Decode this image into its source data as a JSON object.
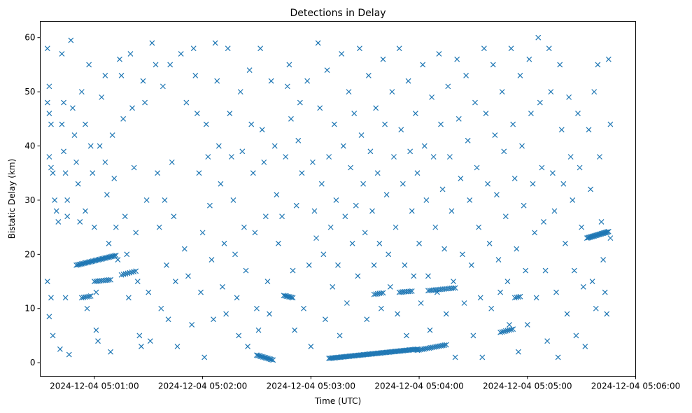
{
  "chart_data": {
    "type": "scatter",
    "title": "Detections in Delay",
    "xlabel": "Time (UTC)",
    "ylabel": "Bistatic Delay (km)",
    "x_unit": "seconds after 2024-12-04 05:00:00",
    "xlim": [
      30,
      360
    ],
    "ylim": [
      -2.5,
      63
    ],
    "xticks": [
      60,
      120,
      180,
      240,
      300,
      360
    ],
    "xtick_labels": [
      "2024-12-04 05:01:00",
      "2024-12-04 05:02:00",
      "2024-12-04 05:03:00",
      "2024-12-04 05:04:00",
      "2024-12-04 05:05:00",
      "2024-12-04 05:06:00"
    ],
    "yticks": [
      0,
      10,
      20,
      30,
      40,
      50,
      60
    ],
    "ytick_labels": [
      "0",
      "10",
      "20",
      "30",
      "40",
      "50",
      "60"
    ],
    "marker": "x",
    "color": "#1f77b4",
    "grid": false,
    "tracks": [
      {
        "start": [
          50,
          18.0
        ],
        "end": [
          72,
          19.8
        ],
        "n": 30
      },
      {
        "start": [
          60,
          15.0
        ],
        "end": [
          69,
          15.3
        ],
        "n": 10
      },
      {
        "start": [
          75,
          16.2
        ],
        "end": [
          83,
          16.9
        ],
        "n": 8
      },
      {
        "start": [
          53,
          12.0
        ],
        "end": [
          58,
          12.3
        ],
        "n": 6
      },
      {
        "start": [
          150,
          1.4
        ],
        "end": [
          159,
          0.5
        ],
        "n": 14
      },
      {
        "start": [
          165,
          12.4
        ],
        "end": [
          170,
          12.0
        ],
        "n": 8
      },
      {
        "start": [
          190,
          0.8
        ],
        "end": [
          239,
          2.5
        ],
        "n": 70
      },
      {
        "start": [
          239,
          2.3
        ],
        "end": [
          255,
          3.3
        ],
        "n": 18
      },
      {
        "start": [
          229,
          13.0
        ],
        "end": [
          236,
          13.2
        ],
        "n": 8
      },
      {
        "start": [
          215,
          12.6
        ],
        "end": [
          220,
          12.9
        ],
        "n": 6
      },
      {
        "start": [
          245,
          13.3
        ],
        "end": [
          260,
          13.8
        ],
        "n": 16
      },
      {
        "start": [
          285,
          5.6
        ],
        "end": [
          292,
          6.2
        ],
        "n": 8
      },
      {
        "start": [
          333,
          23.0
        ],
        "end": [
          345,
          24.2
        ],
        "n": 22
      },
      {
        "start": [
          293,
          12.0
        ],
        "end": [
          296,
          12.2
        ],
        "n": 4
      }
    ],
    "points": [
      [
        34,
        58
      ],
      [
        35,
        51
      ],
      [
        34,
        48
      ],
      [
        35,
        46
      ],
      [
        36,
        44
      ],
      [
        35,
        38
      ],
      [
        36,
        36
      ],
      [
        37,
        35
      ],
      [
        34,
        15
      ],
      [
        36,
        12
      ],
      [
        35,
        8.5
      ],
      [
        37,
        5
      ],
      [
        38,
        30
      ],
      [
        39,
        28
      ],
      [
        40,
        26
      ],
      [
        41,
        2.5
      ],
      [
        42,
        57
      ],
      [
        43,
        48
      ],
      [
        42,
        44
      ],
      [
        43,
        39
      ],
      [
        44,
        35
      ],
      [
        45,
        30
      ],
      [
        45,
        27
      ],
      [
        44,
        12
      ],
      [
        46,
        1.5
      ],
      [
        47,
        59.5
      ],
      [
        48,
        47
      ],
      [
        49,
        42
      ],
      [
        50,
        37
      ],
      [
        51,
        33
      ],
      [
        52,
        26
      ],
      [
        53,
        50
      ],
      [
        55,
        44
      ],
      [
        55,
        28
      ],
      [
        56,
        10
      ],
      [
        57,
        55
      ],
      [
        58,
        40
      ],
      [
        59,
        35
      ],
      [
        60,
        25
      ],
      [
        61,
        13
      ],
      [
        61,
        6
      ],
      [
        62,
        4
      ],
      [
        63,
        40
      ],
      [
        64,
        49
      ],
      [
        66,
        53
      ],
      [
        66,
        37
      ],
      [
        67,
        31
      ],
      [
        68,
        22
      ],
      [
        69,
        2
      ],
      [
        70,
        42
      ],
      [
        71,
        34
      ],
      [
        72,
        25
      ],
      [
        73,
        19
      ],
      [
        74,
        56
      ],
      [
        75,
        53
      ],
      [
        76,
        45
      ],
      [
        77,
        27
      ],
      [
        78,
        20
      ],
      [
        79,
        12
      ],
      [
        80,
        57
      ],
      [
        81,
        47
      ],
      [
        82,
        36
      ],
      [
        83,
        24
      ],
      [
        84,
        15
      ],
      [
        85,
        5
      ],
      [
        86,
        3
      ],
      [
        87,
        52
      ],
      [
        88,
        48
      ],
      [
        89,
        30
      ],
      [
        90,
        13
      ],
      [
        91,
        4
      ],
      [
        92,
        59
      ],
      [
        94,
        55
      ],
      [
        95,
        35
      ],
      [
        96,
        25
      ],
      [
        97,
        10
      ],
      [
        98,
        51
      ],
      [
        99,
        30
      ],
      [
        100,
        18
      ],
      [
        101,
        8
      ],
      [
        102,
        55
      ],
      [
        103,
        37
      ],
      [
        104,
        27
      ],
      [
        105,
        15
      ],
      [
        106,
        3
      ],
      [
        108,
        57
      ],
      [
        110,
        21
      ],
      [
        111,
        48
      ],
      [
        112,
        16
      ],
      [
        114,
        7
      ],
      [
        115,
        58
      ],
      [
        116,
        53
      ],
      [
        117,
        46
      ],
      [
        118,
        35
      ],
      [
        119,
        13
      ],
      [
        120,
        24
      ],
      [
        121,
        1
      ],
      [
        122,
        44
      ],
      [
        123,
        38
      ],
      [
        124,
        29
      ],
      [
        125,
        19
      ],
      [
        126,
        8
      ],
      [
        127,
        59
      ],
      [
        128,
        52
      ],
      [
        129,
        40
      ],
      [
        130,
        33
      ],
      [
        131,
        14
      ],
      [
        132,
        22
      ],
      [
        133,
        9
      ],
      [
        134,
        58
      ],
      [
        135,
        46
      ],
      [
        136,
        38
      ],
      [
        137,
        30
      ],
      [
        138,
        20
      ],
      [
        139,
        12
      ],
      [
        140,
        5
      ],
      [
        141,
        50
      ],
      [
        142,
        39
      ],
      [
        143,
        25
      ],
      [
        144,
        17
      ],
      [
        145,
        3
      ],
      [
        146,
        54
      ],
      [
        147,
        44
      ],
      [
        148,
        35
      ],
      [
        149,
        24
      ],
      [
        150,
        10
      ],
      [
        151,
        6
      ],
      [
        152,
        58
      ],
      [
        153,
        43
      ],
      [
        154,
        37
      ],
      [
        155,
        27
      ],
      [
        156,
        15
      ],
      [
        157,
        9
      ],
      [
        158,
        52
      ],
      [
        160,
        40
      ],
      [
        161,
        31
      ],
      [
        162,
        22
      ],
      [
        164,
        27
      ],
      [
        166,
        38
      ],
      [
        167,
        51
      ],
      [
        168,
        55
      ],
      [
        169,
        45
      ],
      [
        170,
        17
      ],
      [
        171,
        6
      ],
      [
        172,
        29
      ],
      [
        173,
        41
      ],
      [
        174,
        48
      ],
      [
        175,
        35
      ],
      [
        176,
        10
      ],
      [
        178,
        52
      ],
      [
        179,
        18
      ],
      [
        180,
        3
      ],
      [
        181,
        37
      ],
      [
        182,
        28
      ],
      [
        183,
        23
      ],
      [
        184,
        59
      ],
      [
        185,
        47
      ],
      [
        186,
        33
      ],
      [
        187,
        20
      ],
      [
        188,
        8
      ],
      [
        189,
        54
      ],
      [
        190,
        38
      ],
      [
        191,
        25
      ],
      [
        192,
        14
      ],
      [
        193,
        44
      ],
      [
        194,
        30
      ],
      [
        195,
        18
      ],
      [
        196,
        5
      ],
      [
        197,
        57
      ],
      [
        198,
        40
      ],
      [
        199,
        27
      ],
      [
        200,
        11
      ],
      [
        201,
        50
      ],
      [
        202,
        36
      ],
      [
        203,
        22
      ],
      [
        204,
        46
      ],
      [
        205,
        29
      ],
      [
        206,
        16
      ],
      [
        207,
        58
      ],
      [
        208,
        42
      ],
      [
        209,
        33
      ],
      [
        210,
        24
      ],
      [
        211,
        8
      ],
      [
        212,
        53
      ],
      [
        213,
        39
      ],
      [
        214,
        28
      ],
      [
        215,
        18
      ],
      [
        216,
        47
      ],
      [
        217,
        35
      ],
      [
        218,
        22
      ],
      [
        219,
        10
      ],
      [
        220,
        56
      ],
      [
        221,
        44
      ],
      [
        222,
        31
      ],
      [
        223,
        20
      ],
      [
        224,
        14
      ],
      [
        225,
        50
      ],
      [
        226,
        38
      ],
      [
        227,
        25
      ],
      [
        228,
        9
      ],
      [
        229,
        58
      ],
      [
        230,
        43
      ],
      [
        231,
        33
      ],
      [
        232,
        18
      ],
      [
        233,
        5
      ],
      [
        234,
        52
      ],
      [
        235,
        39
      ],
      [
        236,
        28
      ],
      [
        237,
        16
      ],
      [
        238,
        46
      ],
      [
        239,
        35
      ],
      [
        240,
        22
      ],
      [
        241,
        11
      ],
      [
        242,
        55
      ],
      [
        243,
        40
      ],
      [
        244,
        30
      ],
      [
        245,
        16
      ],
      [
        246,
        6
      ],
      [
        247,
        49
      ],
      [
        248,
        38
      ],
      [
        249,
        25
      ],
      [
        250,
        13
      ],
      [
        251,
        57
      ],
      [
        252,
        44
      ],
      [
        253,
        32
      ],
      [
        254,
        21
      ],
      [
        255,
        9
      ],
      [
        256,
        51
      ],
      [
        257,
        38
      ],
      [
        258,
        28
      ],
      [
        259,
        15
      ],
      [
        260,
        1
      ],
      [
        261,
        56
      ],
      [
        262,
        45
      ],
      [
        263,
        34
      ],
      [
        264,
        20
      ],
      [
        265,
        11
      ],
      [
        266,
        53
      ],
      [
        267,
        41
      ],
      [
        268,
        30
      ],
      [
        269,
        18
      ],
      [
        270,
        5
      ],
      [
        271,
        48
      ],
      [
        272,
        36
      ],
      [
        273,
        25
      ],
      [
        274,
        12
      ],
      [
        275,
        1
      ],
      [
        276,
        58
      ],
      [
        277,
        46
      ],
      [
        278,
        33
      ],
      [
        279,
        22
      ],
      [
        280,
        10
      ],
      [
        281,
        55
      ],
      [
        282,
        42
      ],
      [
        283,
        31
      ],
      [
        284,
        19
      ],
      [
        285,
        13
      ],
      [
        286,
        50
      ],
      [
        287,
        39
      ],
      [
        288,
        27
      ],
      [
        289,
        15
      ],
      [
        290,
        7
      ],
      [
        291,
        58
      ],
      [
        292,
        44
      ],
      [
        293,
        34
      ],
      [
        294,
        21
      ],
      [
        295,
        2
      ],
      [
        296,
        53
      ],
      [
        297,
        40
      ],
      [
        298,
        29
      ],
      [
        299,
        17
      ],
      [
        300,
        7
      ],
      [
        301,
        56
      ],
      [
        302,
        46
      ],
      [
        303,
        33
      ],
      [
        304,
        24
      ],
      [
        305,
        12
      ],
      [
        306,
        60
      ],
      [
        307,
        48
      ],
      [
        308,
        36
      ],
      [
        309,
        26
      ],
      [
        310,
        17
      ],
      [
        311,
        4
      ],
      [
        312,
        58
      ],
      [
        313,
        50
      ],
      [
        314,
        35
      ],
      [
        315,
        28
      ],
      [
        316,
        13
      ],
      [
        317,
        1
      ],
      [
        318,
        55
      ],
      [
        319,
        43
      ],
      [
        320,
        33
      ],
      [
        321,
        22
      ],
      [
        322,
        9
      ],
      [
        323,
        49
      ],
      [
        324,
        38
      ],
      [
        325,
        30
      ],
      [
        326,
        17
      ],
      [
        327,
        5
      ],
      [
        328,
        46
      ],
      [
        329,
        36
      ],
      [
        330,
        25
      ],
      [
        331,
        14
      ],
      [
        332,
        3
      ],
      [
        334,
        43
      ],
      [
        335,
        32
      ],
      [
        336,
        15
      ],
      [
        337,
        50
      ],
      [
        338,
        10
      ],
      [
        339,
        55
      ],
      [
        340,
        38
      ],
      [
        341,
        26
      ],
      [
        342,
        19
      ],
      [
        343,
        13
      ],
      [
        344,
        9
      ],
      [
        345,
        56
      ],
      [
        346,
        44
      ],
      [
        346,
        23
      ]
    ]
  }
}
